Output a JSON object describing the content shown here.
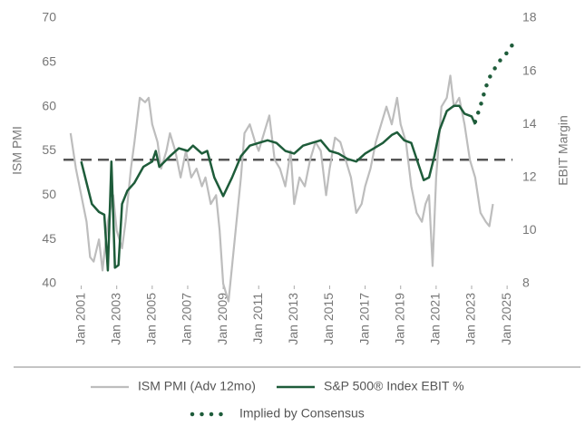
{
  "chart_data": {
    "type": "line",
    "ylabel": "ISM PMI",
    "y2label": "EBIT Margin",
    "xlim": [
      2000.0,
      2025.3
    ],
    "xticks": [
      {
        "value": 2001,
        "label": "Jan 2001"
      },
      {
        "value": 2003,
        "label": "Jan 2003"
      },
      {
        "value": 2005,
        "label": "Jan 2005"
      },
      {
        "value": 2007,
        "label": "Jan 2007"
      },
      {
        "value": 2009,
        "label": "Jan 2009"
      },
      {
        "value": 2011,
        "label": "Jan 2011"
      },
      {
        "value": 2013,
        "label": "Jan 2013"
      },
      {
        "value": 2015,
        "label": "Jan 2015"
      },
      {
        "value": 2017,
        "label": "Jan 2017"
      },
      {
        "value": 2019,
        "label": "Jan 2019"
      },
      {
        "value": 2021,
        "label": "Jan 2021"
      },
      {
        "value": 2023,
        "label": "Jan 2023"
      },
      {
        "value": 2025,
        "label": "Jan 2025"
      }
    ],
    "ylim": [
      40,
      70
    ],
    "yticks": [
      40,
      45,
      50,
      55,
      60,
      65,
      70
    ],
    "y2lim": [
      8,
      18
    ],
    "y2ticks": [
      8,
      10,
      12,
      14,
      16,
      18
    ],
    "reference_line": 54,
    "reference_color": "#555555",
    "series": [
      {
        "name": "ISM PMI (Adv 12mo)",
        "color": "#bdbdbd",
        "style": "solid",
        "axis": "y",
        "x": [
          2000.4,
          2000.7,
          2001.0,
          2001.3,
          2001.5,
          2001.7,
          2002.0,
          2002.2,
          2002.5,
          2002.8,
          2003.0,
          2003.3,
          2003.5,
          2003.8,
          2004.0,
          2004.3,
          2004.6,
          2004.8,
          2005.0,
          2005.3,
          2005.5,
          2005.8,
          2006.0,
          2006.3,
          2006.6,
          2006.9,
          2007.2,
          2007.5,
          2007.8,
          2008.0,
          2008.3,
          2008.6,
          2008.8,
          2009.0,
          2009.3,
          2009.5,
          2009.8,
          2010.0,
          2010.2,
          2010.5,
          2010.8,
          2011.0,
          2011.3,
          2011.6,
          2011.9,
          2012.2,
          2012.5,
          2012.8,
          2013.0,
          2013.3,
          2013.6,
          2013.9,
          2014.2,
          2014.5,
          2014.8,
          2015.0,
          2015.3,
          2015.6,
          2015.9,
          2016.2,
          2016.5,
          2016.8,
          2017.0,
          2017.3,
          2017.6,
          2017.9,
          2018.2,
          2018.5,
          2018.8,
          2019.0,
          2019.3,
          2019.6,
          2019.9,
          2020.2,
          2020.4,
          2020.6,
          2020.8,
          2021.0,
          2021.3,
          2021.6,
          2021.8,
          2022.0,
          2022.3,
          2022.6,
          2022.9,
          2023.2,
          2023.5,
          2023.8,
          2024.0,
          2024.2
        ],
        "values": [
          57,
          53,
          50,
          47,
          43,
          42.5,
          45,
          41.5,
          47,
          50,
          46,
          44,
          47,
          53,
          56,
          61,
          60.5,
          61,
          58,
          56,
          53,
          55,
          57,
          55,
          52,
          55,
          52,
          53,
          51,
          52,
          49,
          50,
          46,
          40,
          38,
          42,
          48,
          52,
          57,
          58,
          56,
          55,
          57,
          59,
          54,
          53,
          51,
          55,
          49,
          52,
          51,
          54,
          56,
          55,
          50,
          53,
          56.5,
          56,
          54,
          52,
          48,
          49,
          51,
          53,
          56,
          58,
          60,
          58,
          61,
          58,
          56,
          51,
          48,
          47,
          49,
          50,
          42,
          52,
          60,
          61,
          63.5,
          60,
          61,
          58,
          54,
          52,
          48,
          47,
          46.5,
          49
        ]
      },
      {
        "name": "S&P 500® Index EBIT %",
        "color": "#1e5c3a",
        "style": "solid",
        "axis": "y2",
        "x": [
          2001.0,
          2001.3,
          2001.6,
          2002.0,
          2002.3,
          2002.5,
          2002.7,
          2002.9,
          2003.1,
          2003.3,
          2003.6,
          2004.0,
          2004.5,
          2005.0,
          2005.2,
          2005.4,
          2006.0,
          2006.5,
          2007.0,
          2007.3,
          2007.8,
          2008.1,
          2008.5,
          2009.0,
          2009.5,
          2010.0,
          2010.5,
          2011.0,
          2011.5,
          2012.0,
          2012.5,
          2013.0,
          2013.5,
          2014.0,
          2014.5,
          2015.0,
          2015.5,
          2016.0,
          2016.5,
          2017.0,
          2017.5,
          2018.0,
          2018.5,
          2018.8,
          2019.2,
          2019.6,
          2020.0,
          2020.3,
          2020.6,
          2020.9,
          2021.2,
          2021.6,
          2022.0,
          2022.3,
          2022.6,
          2023.0,
          2023.2
        ],
        "values": [
          12.6,
          11.8,
          11.0,
          10.7,
          10.6,
          8.5,
          12.6,
          8.6,
          8.7,
          11.0,
          11.5,
          11.8,
          12.4,
          12.6,
          13.0,
          12.4,
          12.8,
          13.1,
          13.0,
          13.2,
          12.9,
          13.0,
          12.0,
          11.3,
          12.0,
          12.8,
          13.2,
          13.3,
          13.4,
          13.3,
          13.0,
          12.9,
          13.2,
          13.3,
          13.4,
          13.0,
          12.9,
          12.7,
          12.6,
          12.9,
          13.1,
          13.3,
          13.6,
          13.7,
          13.4,
          13.3,
          12.5,
          11.9,
          12.0,
          12.8,
          13.8,
          14.5,
          14.7,
          14.7,
          14.4,
          14.3,
          14.0
        ]
      },
      {
        "name": "Implied by Consensus",
        "color": "#1e5c3a",
        "style": "dotted",
        "axis": "y2",
        "x": [
          2023.2,
          2023.5,
          2023.8,
          2024.1,
          2024.4,
          2024.7,
          2025.0,
          2025.3
        ],
        "values": [
          14.1,
          14.7,
          15.4,
          15.9,
          16.2,
          16.5,
          16.7,
          17.0
        ]
      }
    ]
  }
}
